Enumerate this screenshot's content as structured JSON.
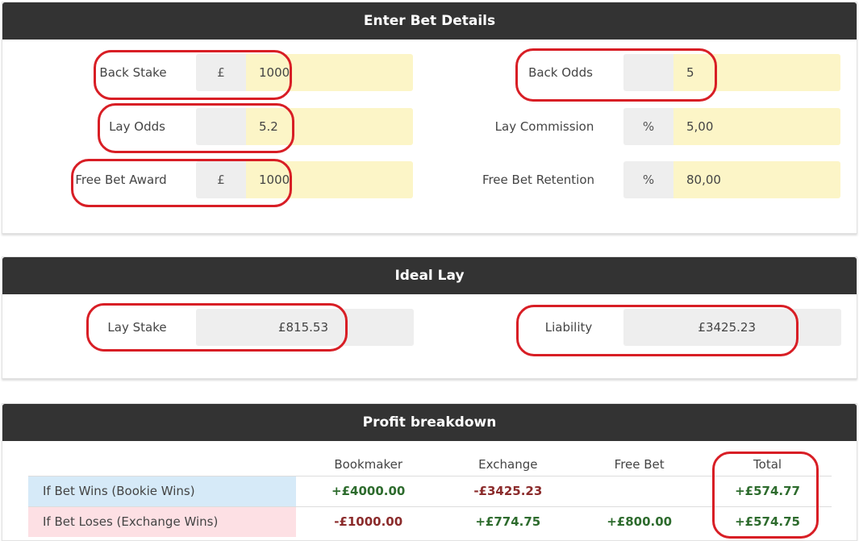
{
  "bet_details": {
    "title": "Enter Bet Details",
    "back_stake": {
      "label": "Back Stake",
      "addon": "£",
      "value": "1000"
    },
    "lay_odds": {
      "label": "Lay Odds",
      "addon": "",
      "value": "5.2"
    },
    "free_bet_award": {
      "label": "Free Bet Award",
      "addon": "£",
      "value": "1000"
    },
    "back_odds": {
      "label": "Back Odds",
      "addon": "",
      "value": "5"
    },
    "lay_commission": {
      "label": "Lay Commission",
      "addon": "%",
      "value": "5,00"
    },
    "free_bet_retention": {
      "label": "Free Bet Retention",
      "addon": "%",
      "value": "80,00"
    }
  },
  "ideal_lay": {
    "title": "Ideal Lay",
    "lay_stake": {
      "label": "Lay Stake",
      "value": "£815.53"
    },
    "liability": {
      "label": "Liability",
      "value": "£3425.23"
    }
  },
  "profit": {
    "title": "Profit breakdown",
    "columns": [
      "Bookmaker",
      "Exchange",
      "Free Bet",
      "Total"
    ],
    "rows": [
      {
        "label": "If Bet Wins (Bookie Wins)",
        "bookmaker": "+£4000.00",
        "exchange": "-£3425.23",
        "free_bet": "",
        "total": "+£574.77"
      },
      {
        "label": "If Bet Loses (Exchange Wins)",
        "bookmaker": "-£1000.00",
        "exchange": "+£774.75",
        "free_bet": "+£800.00",
        "total": "+£574.75"
      }
    ]
  },
  "colors": {
    "header": "#333333",
    "input": "#fcf5c7",
    "addon": "#eeeeee",
    "win_row": "#d6eaf8",
    "lose_row": "#fde0e4",
    "positive": "#2d6b2d",
    "negative": "#8b2b2b",
    "annotation": "#d81e25"
  }
}
